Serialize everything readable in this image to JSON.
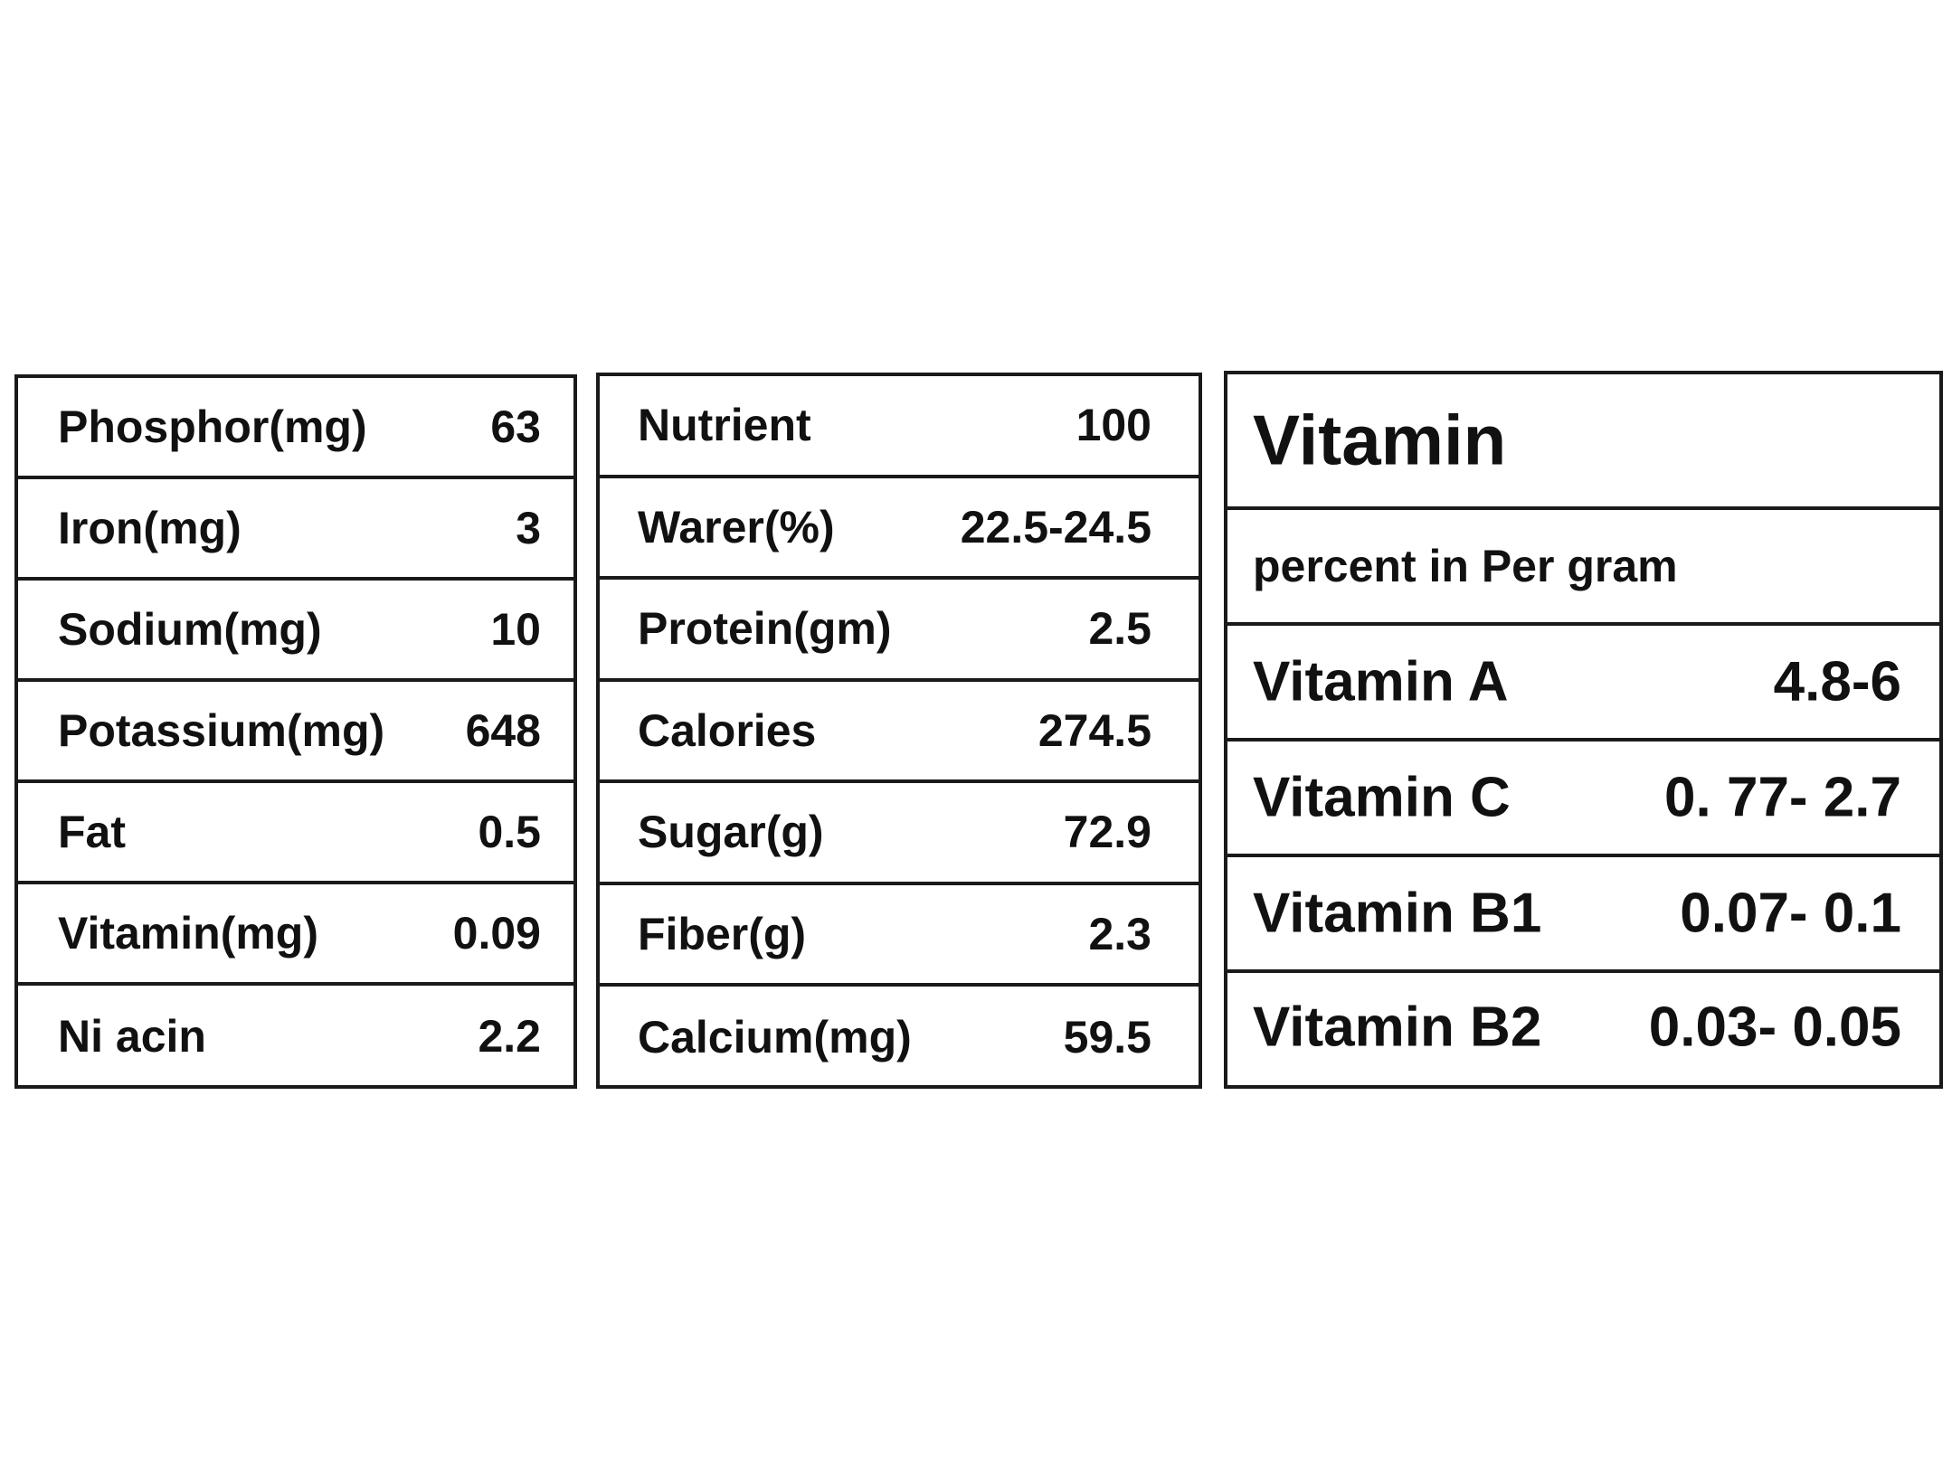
{
  "table_minerals": {
    "rows": [
      {
        "label": "Phosphor(mg)",
        "value": "63"
      },
      {
        "label": "Iron(mg)",
        "value": "3"
      },
      {
        "label": "Sodium(mg)",
        "value": "10"
      },
      {
        "label": "Potassium(mg)",
        "value": "648"
      },
      {
        "label": "Fat",
        "value": "0.5"
      },
      {
        "label": "Vitamin(mg)",
        "value": "0.09"
      },
      {
        "label": "Ni acin",
        "value": "2.2"
      }
    ]
  },
  "table_nutrients": {
    "rows": [
      {
        "label": "Nutrient",
        "value": "100"
      },
      {
        "label": "Warer(%)",
        "value": "22.5-24.5"
      },
      {
        "label": "Protein(gm)",
        "value": "2.5"
      },
      {
        "label": "Calories",
        "value": "274.5"
      },
      {
        "label": "Sugar(g)",
        "value": "72.9"
      },
      {
        "label": "Fiber(g)",
        "value": "2.3"
      },
      {
        "label": "Calcium(mg)",
        "value": "59.5"
      }
    ]
  },
  "table_vitamins": {
    "title": "Vitamin",
    "subtitle": "percent in Per gram",
    "rows": [
      {
        "label": "Vitamin A",
        "value": "4.8-6"
      },
      {
        "label": "Vitamin C",
        "value": "0. 77- 2.7"
      },
      {
        "label": "Vitamin B1",
        "value": "0.07- 0.1"
      },
      {
        "label": "Vitamin B2",
        "value": "0.03- 0.05"
      }
    ]
  }
}
